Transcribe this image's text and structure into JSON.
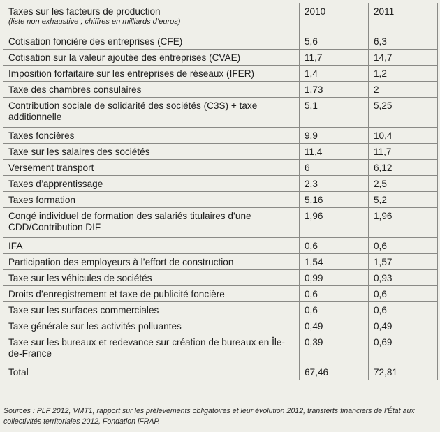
{
  "table": {
    "header": {
      "title": "Taxes sur les facteurs de production",
      "subtitle": "(liste non exhaustive ; chiffres en milliards d’euros)",
      "col_2010": "2010",
      "col_2011": "2011"
    },
    "rows": [
      {
        "label": "Cotisation foncière des entreprises (CFE)",
        "v2010": "5,6",
        "v2011": "6,3"
      },
      {
        "label": "Cotisation sur la valeur ajoutée des entreprises (CVAE)",
        "v2010": "11,7",
        "v2011": "14,7"
      },
      {
        "label": "Imposition forfaitaire sur les entreprises de réseaux (IFER)",
        "v2010": "1,4",
        "v2011": "1,2"
      },
      {
        "label": "Taxe des chambres consulaires",
        "v2010": "1,73",
        "v2011": "2"
      },
      {
        "label": "Contribution sociale de solidarité des sociétés (C3S) + taxe additionnelle",
        "v2010": "5,1",
        "v2011": "5,25"
      },
      {
        "label": "Taxes foncières",
        "v2010": "9,9",
        "v2011": "10,4"
      },
      {
        "label": "Taxe sur les salaires des sociétés",
        "v2010": "11,4",
        "v2011": "11,7"
      },
      {
        "label": "Versement transport",
        "v2010": "6",
        "v2011": "6,12"
      },
      {
        "label": "Taxes d’apprentissage",
        "v2010": "2,3",
        "v2011": "2,5"
      },
      {
        "label": "Taxes formation",
        "v2010": "5,16",
        "v2011": "5,2"
      },
      {
        "label": "Congé individuel de formation des salariés titulaires d’une CDD/Contribution DIF",
        "v2010": "1,96",
        "v2011": "1,96"
      },
      {
        "label": "IFA",
        "v2010": "0,6",
        "v2011": "0,6"
      },
      {
        "label": "Participation des employeurs à l’effort de construction",
        "v2010": "1,54",
        "v2011": "1,57"
      },
      {
        "label": "Taxe sur les véhicules de sociétés",
        "v2010": "0,99",
        "v2011": "0,93"
      },
      {
        "label": "Droits d’enregistrement et taxe de publicité foncière",
        "v2010": "0,6",
        "v2011": "0,6"
      },
      {
        "label": "Taxe sur les surfaces commerciales",
        "v2010": "0,6",
        "v2011": "0,6"
      },
      {
        "label": "Taxe générale sur les activités polluantes",
        "v2010": "0,49",
        "v2011": "0,49"
      },
      {
        "label": "Taxe sur les bureaux et redevance sur création de bureaux en Île-de-France",
        "v2010": "0,39",
        "v2011": "0,69"
      },
      {
        "label": "Total",
        "v2010": "67,46",
        "v2011": "72,81"
      }
    ]
  },
  "sources": "Sources : PLF 2012, VMT1, rapport sur les prélèvements obligatoires et leur évolution 2012, transferts financiers de l’État aux collectivités territoriales 2012, Fondation iFRAP."
}
